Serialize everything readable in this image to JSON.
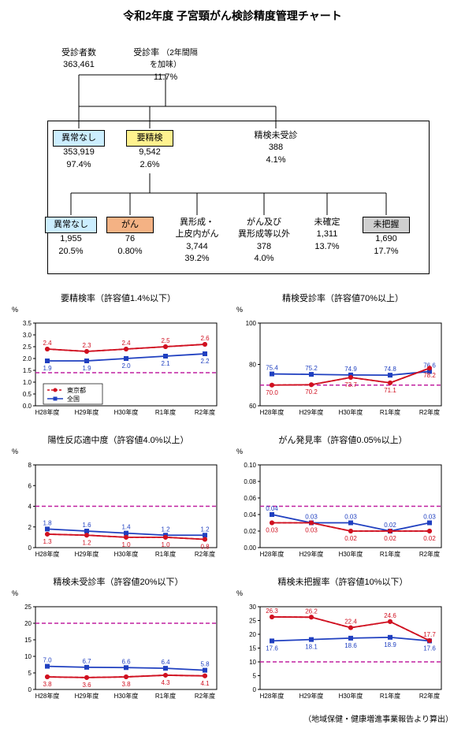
{
  "title": "令和2年度 子宮頸がん検診精度管理チャート",
  "tree": {
    "examined": {
      "label": "受診者数",
      "val": "363,461"
    },
    "rate": {
      "label": "受診率",
      "val": "11.7%",
      "note": "（2年間隔を加味）"
    },
    "normal": {
      "label": "異常なし",
      "val": "353,919",
      "pct": "97.4%",
      "bg": "#cceeff"
    },
    "recheck": {
      "label": "要精検",
      "val": "9,542",
      "pct": "2.6%",
      "bg": "#fff28f"
    },
    "notex": {
      "label": "精検未受診",
      "val": "388",
      "pct": "4.1%"
    },
    "d1": {
      "label": "異常なし",
      "val": "1,955",
      "pct": "20.5%",
      "bg": "#cceeff"
    },
    "d2": {
      "label": "がん",
      "val": "76",
      "pct": "0.80%",
      "bg": "#f4b284"
    },
    "d3": {
      "label": "異形成・\n上皮内がん",
      "val": "3,744",
      "pct": "39.2%"
    },
    "d4": {
      "label": "がん及び\n異形成等以外",
      "val": "378",
      "pct": "4.0%"
    },
    "d5": {
      "label": "未確定",
      "val": "1,311",
      "pct": "13.7%"
    },
    "d6": {
      "label": "未把握",
      "val": "1,690",
      "pct": "17.7%",
      "bg": "#d0d0d0"
    }
  },
  "legend": {
    "tokyo": "東京都",
    "tokyo_c": "#d01020",
    "natl": "全国",
    "natl_c": "#2040c0"
  },
  "ref_c": "#c020a0",
  "years": [
    "H28年度",
    "H29年度",
    "H30年度",
    "R1年度",
    "R2年度"
  ],
  "charts": [
    {
      "title": "要精検率（許容値1.4%以下）",
      "ymin": 0,
      "ymax": 3.5,
      "step": 0.5,
      "ref": 1.4,
      "tokyo": [
        2.4,
        2.3,
        2.4,
        2.5,
        2.6
      ],
      "natl": [
        1.9,
        1.9,
        2.0,
        2.1,
        2.2
      ],
      "tpos": "top",
      "npos": "bot",
      "show_legend": true
    },
    {
      "title": "精検受診率（許容値70%以上）",
      "ymin": 60,
      "ymax": 100,
      "step": 20,
      "ref": 70,
      "tokyo": [
        70.0,
        70.2,
        73.7,
        71.1,
        78.2
      ],
      "natl": [
        75.4,
        75.2,
        74.9,
        74.8,
        76.6
      ],
      "tpos": "bot",
      "npos": "top"
    },
    {
      "title": "陽性反応適中度（許容値4.0%以上）",
      "ymin": 0,
      "ymax": 8.0,
      "step": 2.0,
      "ref": 4.0,
      "tokyo": [
        1.3,
        1.2,
        1.0,
        1.0,
        0.8
      ],
      "natl": [
        1.8,
        1.6,
        1.4,
        1.2,
        1.2
      ],
      "tpos": "bot",
      "npos": "top"
    },
    {
      "title": "がん発見率（許容値0.05%以上）",
      "ymin": 0,
      "ymax": 0.1,
      "step": 0.02,
      "ref": 0.05,
      "tokyo": [
        0.03,
        0.03,
        0.02,
        0.02,
        0.02
      ],
      "natl": [
        0.04,
        0.03,
        0.03,
        0.02,
        0.03
      ],
      "tpos": "bot",
      "npos": "top",
      "fmt": 2
    },
    {
      "title": "精検未受診率（許容値20%以下）",
      "ymin": 0,
      "ymax": 25,
      "step": 5,
      "ref": 20,
      "tokyo": [
        3.8,
        3.6,
        3.8,
        4.3,
        4.1
      ],
      "natl": [
        7.0,
        6.7,
        6.6,
        6.4,
        5.8
      ],
      "tpos": "bot",
      "npos": "top"
    },
    {
      "title": "精検未把握率（許容値10%以下）",
      "ymin": 0,
      "ymax": 30,
      "step": 5,
      "ref": 10,
      "tokyo": [
        26.3,
        26.2,
        22.4,
        24.6,
        17.7
      ],
      "natl": [
        17.6,
        18.1,
        18.6,
        18.9,
        17.6
      ],
      "tpos": "top",
      "npos": "bot"
    }
  ],
  "source": "（地域保健・健康増進事業報告より算出）"
}
